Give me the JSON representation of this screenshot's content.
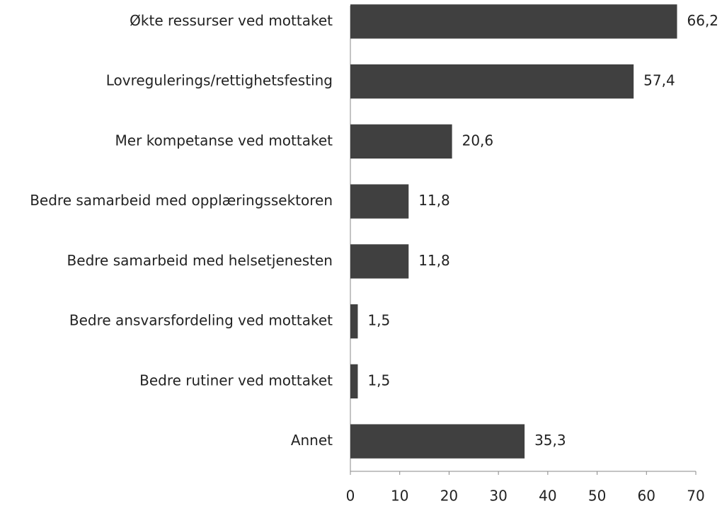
{
  "chart_data": {
    "type": "bar",
    "orientation": "horizontal",
    "categories": [
      "Økte ressurser ved mottaket",
      "Lovregulerings/rettighetsfesting",
      "Mer kompetanse ved mottaket",
      "Bedre samarbeid med opplæringssektoren",
      "Bedre samarbeid med helsetjenesten",
      "Bedre ansvarsfordeling ved mottaket",
      "Bedre rutiner ved mottaket",
      "Annet"
    ],
    "values": [
      66.2,
      57.4,
      20.6,
      11.8,
      11.8,
      1.5,
      1.5,
      35.3
    ],
    "value_labels": [
      "66,2",
      "57,4",
      "20,6",
      "11,8",
      "11,8",
      "1,5",
      "1,5",
      "35,3"
    ],
    "color": "#404040",
    "xlim": [
      0,
      70
    ],
    "xticks": [
      0,
      10,
      20,
      30,
      40,
      50,
      60,
      70
    ],
    "grid": false
  }
}
